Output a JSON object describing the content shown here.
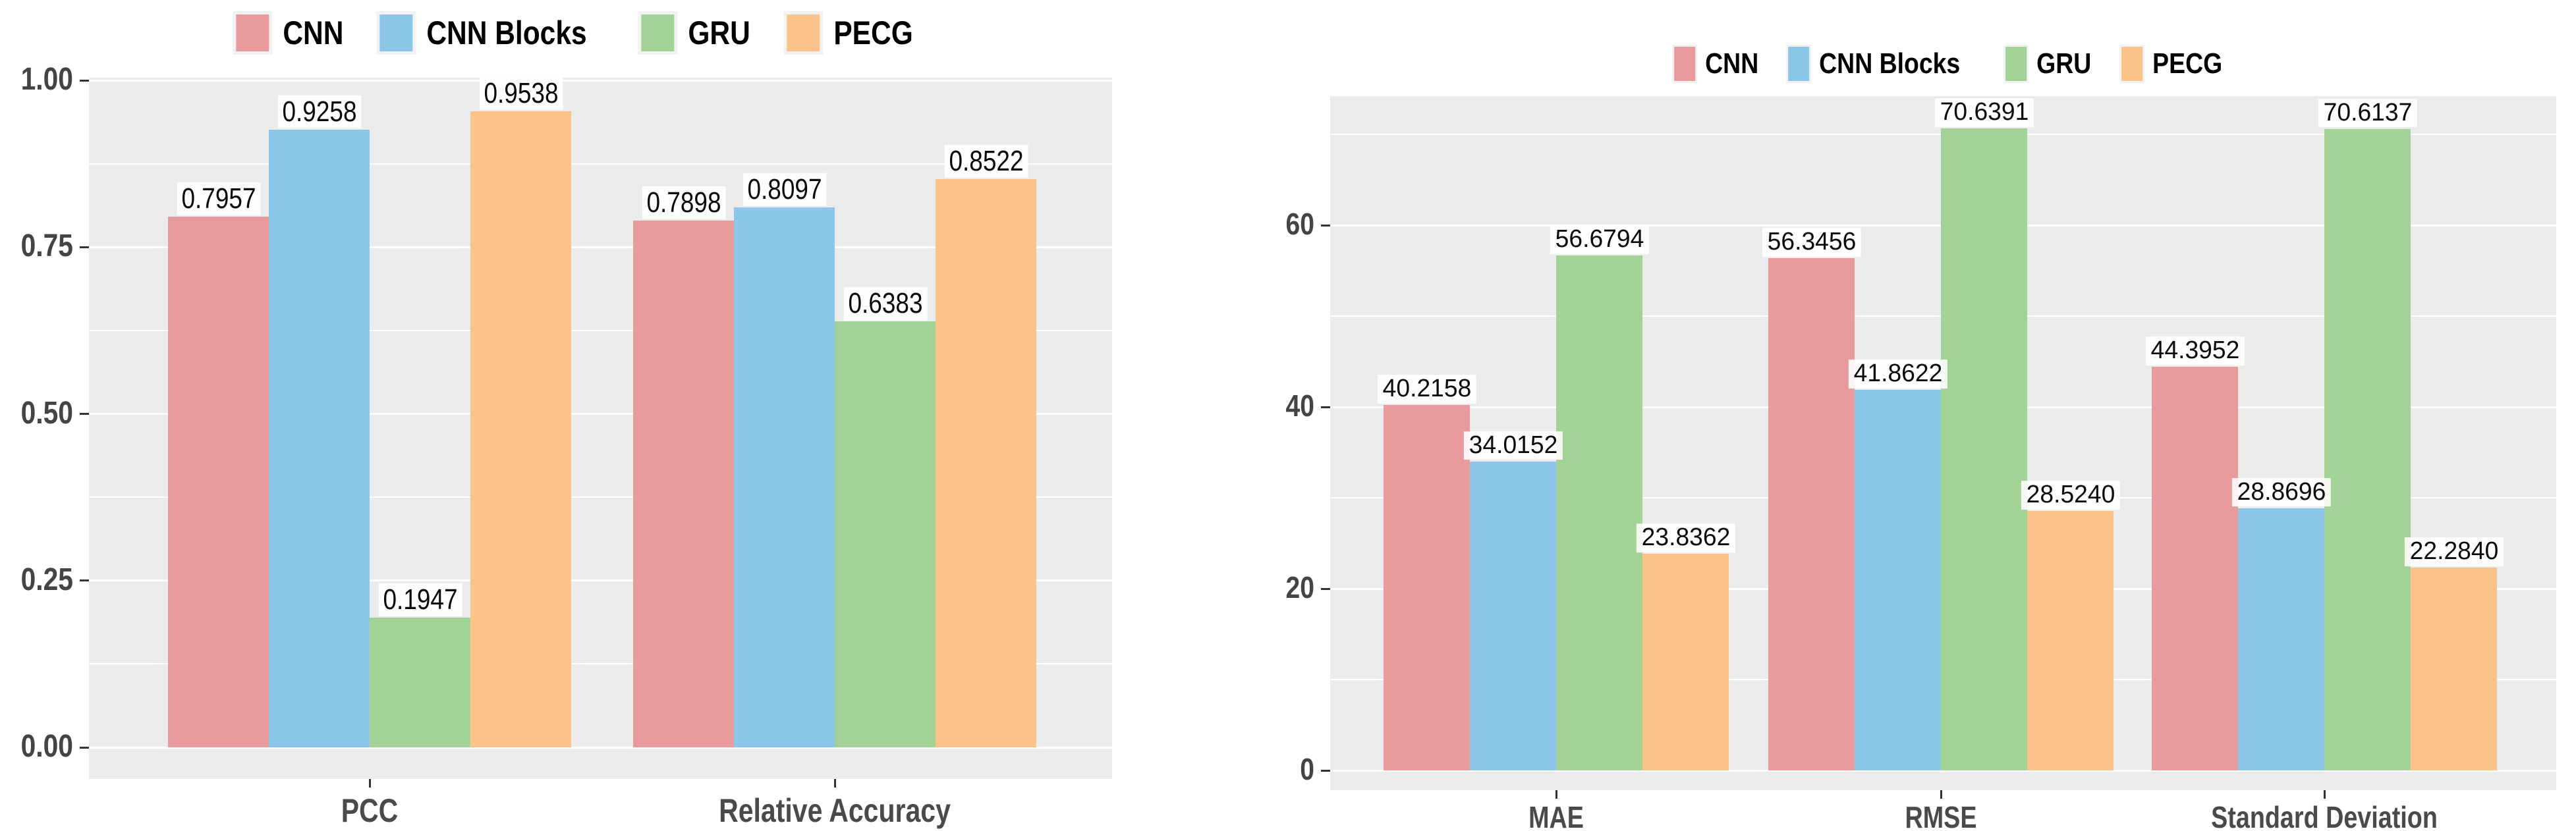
{
  "figure": {
    "description": "Two grouped bar charts comparing CNN, CNN Blocks, GRU and PECG models",
    "background": "#FFFFFF"
  },
  "colors": {
    "panel_background": "#EBEBEB",
    "gridline": "#FFFFFF",
    "axis_text": "#4A4A4A",
    "value_label_text": "#0A0A0A",
    "value_label_halo": "#FFFFFF",
    "tick_mark": "#333333",
    "legend_text": "#000000",
    "cnn": "#E89A9C",
    "cnn_blocks": "#8CC6E8",
    "gru": "#A2D295",
    "pecg": "#F9C38A"
  },
  "chart_data": [
    {
      "type": "bar",
      "title": "",
      "xlabel": "",
      "ylabel": "",
      "legend_position": "top",
      "grid": true,
      "categories": [
        "PCC",
        "Relative Accuracy"
      ],
      "series": [
        {
          "name": "CNN",
          "color": "#E89A9C",
          "values": [
            0.7957,
            0.7898
          ],
          "labels": [
            "0.7957",
            "0.7898"
          ]
        },
        {
          "name": "CNN Blocks",
          "color": "#8CC6E8",
          "values": [
            0.9258,
            0.8097
          ],
          "labels": [
            "0.9258",
            "0.8097"
          ]
        },
        {
          "name": "GRU",
          "color": "#A2D295",
          "values": [
            0.1947,
            0.6383
          ],
          "labels": [
            "0.1947",
            "0.6383"
          ]
        },
        {
          "name": "PECG",
          "color": "#F9C38A",
          "values": [
            0.9538,
            0.8522
          ],
          "labels": [
            "0.9538",
            "0.8522"
          ]
        }
      ],
      "yticks": {
        "values": [
          0,
          0.25,
          0.5,
          0.75,
          1.0
        ],
        "labels": [
          "0.00",
          "0.25",
          "0.50",
          "0.75",
          "1.00"
        ]
      },
      "ylim": [
        0,
        1.002
      ]
    },
    {
      "type": "bar",
      "title": "",
      "xlabel": "",
      "ylabel": "",
      "legend_position": "top",
      "grid": true,
      "categories": [
        "MAE",
        "RMSE",
        "Standard Deviation"
      ],
      "series": [
        {
          "name": "CNN",
          "color": "#E89A9C",
          "values": [
            40.2158,
            56.3456,
            44.3952
          ],
          "labels": [
            "40.2158",
            "56.3456",
            "44.3952"
          ]
        },
        {
          "name": "CNN Blocks",
          "color": "#8CC6E8",
          "values": [
            34.0152,
            41.8622,
            28.8696
          ],
          "labels": [
            "34.0152",
            "41.8622",
            "28.8696"
          ]
        },
        {
          "name": "GRU",
          "color": "#A2D295",
          "values": [
            56.6794,
            70.6391,
            70.6137
          ],
          "labels": [
            "56.6794",
            "70.6391",
            "70.6137"
          ]
        },
        {
          "name": "PECG",
          "color": "#F9C38A",
          "values": [
            23.8362,
            28.524,
            22.284
          ],
          "labels": [
            "23.8362",
            "28.5240",
            "22.2840"
          ]
        }
      ],
      "yticks": {
        "values": [
          0,
          20,
          40,
          60
        ],
        "labels": [
          "0",
          "20",
          "40",
          "60"
        ]
      },
      "ylim": [
        0,
        74.4
      ]
    }
  ]
}
